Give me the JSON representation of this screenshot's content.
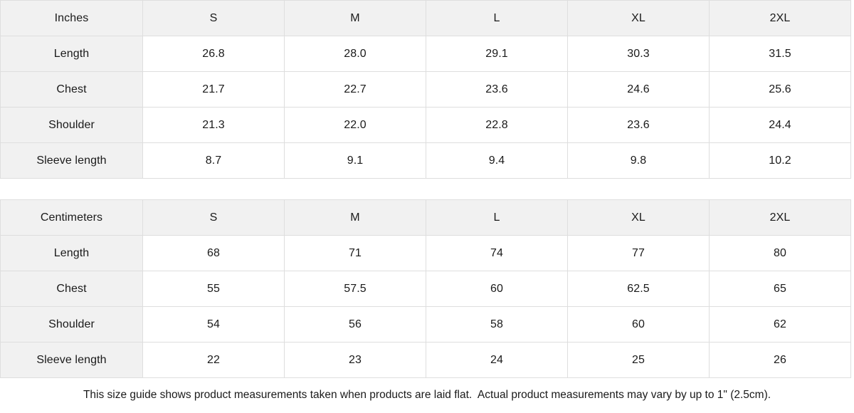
{
  "colors": {
    "header_cell_bg": "#f1f1f1",
    "data_cell_bg": "#ffffff",
    "border": "#dedede",
    "text": "#1a1a1a",
    "page_bg": "#ffffff"
  },
  "chart_data": [
    {
      "type": "table",
      "unit_label": "Inches",
      "columns": [
        "S",
        "M",
        "L",
        "XL",
        "2XL"
      ],
      "rows": [
        {
          "label": "Length",
          "values": [
            "26.8",
            "28.0",
            "29.1",
            "30.3",
            "31.5"
          ]
        },
        {
          "label": "Chest",
          "values": [
            "21.7",
            "22.7",
            "23.6",
            "24.6",
            "25.6"
          ]
        },
        {
          "label": "Shoulder",
          "values": [
            "21.3",
            "22.0",
            "22.8",
            "23.6",
            "24.4"
          ]
        },
        {
          "label": "Sleeve length",
          "values": [
            "8.7",
            "9.1",
            "9.4",
            "9.8",
            "10.2"
          ]
        }
      ]
    },
    {
      "type": "table",
      "unit_label": "Centimeters",
      "columns": [
        "S",
        "M",
        "L",
        "XL",
        "2XL"
      ],
      "rows": [
        {
          "label": "Length",
          "values": [
            "68",
            "71",
            "74",
            "77",
            "80"
          ]
        },
        {
          "label": "Chest",
          "values": [
            "55",
            "57.5",
            "60",
            "62.5",
            "65"
          ]
        },
        {
          "label": "Shoulder",
          "values": [
            "54",
            "56",
            "58",
            "60",
            "62"
          ]
        },
        {
          "label": "Sleeve length",
          "values": [
            "22",
            "23",
            "24",
            "25",
            "26"
          ]
        }
      ]
    }
  ],
  "footer": {
    "note": "This size guide shows product measurements taken when products are laid flat.  Actual product measurements may vary by up to 1\" (2.5cm)."
  }
}
